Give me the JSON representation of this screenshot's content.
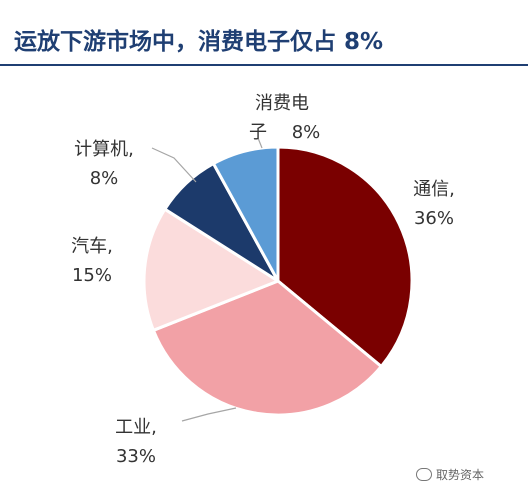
{
  "header": {
    "title": "运放下游市场中，消费电子仅占 8%"
  },
  "chart_data": {
    "type": "pie",
    "slices": [
      {
        "label": "通信,",
        "value": 36,
        "pct_label": "36%",
        "color": "#7a0000"
      },
      {
        "label": "工业,",
        "value": 33,
        "pct_label": "33%",
        "color": "#f2a1a6"
      },
      {
        "label": "汽车,",
        "value": 15,
        "pct_label": "15%",
        "color": "#fbdcdc"
      },
      {
        "label": "计算机,",
        "value": 8,
        "pct_label": "8%",
        "color": "#1c3a6b"
      },
      {
        "label": "消费电子",
        "value": 8,
        "pct_label": "8%",
        "color": "#5b9bd5",
        "label_lines": [
          "消费电",
          "子"
        ]
      }
    ],
    "start_angle_deg": 0,
    "direction": "clockwise",
    "legend": "none",
    "separator_color": "#ffffff"
  },
  "watermark": {
    "text": "取势资本"
  }
}
